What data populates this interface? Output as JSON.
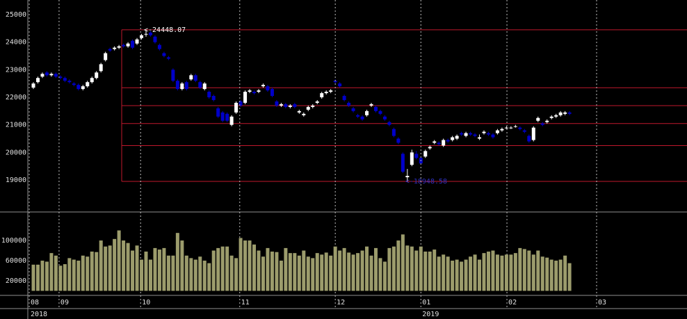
{
  "chart_data": [
    {
      "type": "candlestick",
      "ylim": [
        17840,
        25530
      ],
      "yticks": [
        19000,
        20000,
        21000,
        22000,
        23000,
        24000,
        25000
      ],
      "up_color": "#ffffff",
      "down_color": "#0000c8",
      "fib_color": "#c0182c",
      "fib_x_start": 19.6,
      "fib_levels": [
        24448.07,
        22347.3,
        21698.3,
        21049.4,
        20246.9,
        18948.58
      ],
      "annotations": [
        {
          "text": "<-24448.07",
          "value": 24448.07,
          "x": 25,
          "color": "#ffffff"
        },
        {
          "text": "<-18948.58",
          "value": 18948.58,
          "x": 83,
          "color": "#3030c0"
        }
      ],
      "ohlc": [
        [
          22350,
          22550,
          22300,
          22500
        ],
        [
          22550,
          22750,
          22500,
          22700
        ],
        [
          22750,
          22900,
          22700,
          22850
        ],
        [
          22900,
          22950,
          22750,
          22800
        ],
        [
          22800,
          22900,
          22750,
          22850
        ],
        [
          22850,
          22900,
          22700,
          22750
        ],
        [
          22750,
          22800,
          22650,
          22700
        ],
        [
          22700,
          22750,
          22550,
          22600
        ],
        [
          22600,
          22650,
          22500,
          22550
        ],
        [
          22500,
          22550,
          22400,
          22450
        ],
        [
          22450,
          22500,
          22250,
          22300
        ],
        [
          22300,
          22450,
          22250,
          22400
        ],
        [
          22400,
          22600,
          22350,
          22550
        ],
        [
          22550,
          22750,
          22500,
          22700
        ],
        [
          22700,
          22950,
          22650,
          22900
        ],
        [
          22950,
          23250,
          22900,
          23200
        ],
        [
          23350,
          23650,
          23300,
          23600
        ],
        [
          23750,
          23800,
          23650,
          23700
        ],
        [
          23750,
          23850,
          23700,
          23800
        ],
        [
          23800,
          23900,
          23750,
          23850
        ],
        [
          23900,
          23950,
          23800,
          23850
        ],
        [
          23850,
          24000,
          23800,
          23950
        ],
        [
          24050,
          24100,
          23750,
          23800
        ],
        [
          23950,
          24150,
          23900,
          24100
        ],
        [
          24150,
          24300,
          24100,
          24250
        ],
        [
          24300,
          24448.07,
          24200,
          24300
        ],
        [
          24350,
          24400,
          24200,
          24250
        ],
        [
          24200,
          24250,
          23950,
          24000
        ],
        [
          23900,
          23950,
          23700,
          23750
        ],
        [
          23600,
          23650,
          23450,
          23500
        ],
        [
          23450,
          23500,
          23350,
          23400
        ],
        [
          23000,
          23050,
          22550,
          22600
        ],
        [
          22600,
          22650,
          22250,
          22300
        ],
        [
          22300,
          22550,
          22250,
          22500
        ],
        [
          22550,
          22600,
          22250,
          22300
        ],
        [
          22650,
          22850,
          22600,
          22800
        ],
        [
          22800,
          22850,
          22550,
          22600
        ],
        [
          22550,
          22600,
          22300,
          22350
        ],
        [
          22300,
          22550,
          22250,
          22500
        ],
        [
          22200,
          22250,
          21950,
          22000
        ],
        [
          22050,
          22100,
          21850,
          21900
        ],
        [
          21600,
          21650,
          21250,
          21300
        ],
        [
          21450,
          21500,
          21100,
          21150
        ],
        [
          21400,
          21450,
          21100,
          21150
        ],
        [
          21000,
          21350,
          20950,
          21300
        ],
        [
          21450,
          21850,
          21400,
          21800
        ],
        [
          21850,
          21900,
          21650,
          21700
        ],
        [
          21800,
          22250,
          21750,
          22200
        ],
        [
          22200,
          22300,
          22150,
          22250
        ],
        [
          22200,
          22250,
          22100,
          22150
        ],
        [
          22200,
          22300,
          22150,
          22250
        ],
        [
          22400,
          22500,
          22350,
          22450
        ],
        [
          22400,
          22450,
          22200,
          22250
        ],
        [
          22300,
          22350,
          22000,
          22050
        ],
        [
          21850,
          21900,
          21650,
          21700
        ],
        [
          21700,
          21800,
          21650,
          21750
        ],
        [
          21750,
          21800,
          21600,
          21650
        ],
        [
          21650,
          21750,
          21600,
          21700
        ],
        [
          21750,
          21800,
          21600,
          21650
        ],
        [
          21450,
          21550,
          21400,
          21500
        ],
        [
          21350,
          21450,
          21300,
          21400
        ],
        [
          21550,
          21700,
          21500,
          21650
        ],
        [
          21650,
          21750,
          21600,
          21700
        ],
        [
          21800,
          21900,
          21750,
          21850
        ],
        [
          22000,
          22200,
          21950,
          22150
        ],
        [
          22150,
          22250,
          22100,
          22200
        ],
        [
          22200,
          22300,
          22150,
          22250
        ],
        [
          22600,
          22650,
          22500,
          22550
        ],
        [
          22500,
          22550,
          22350,
          22400
        ],
        [
          22050,
          22100,
          21850,
          21900
        ],
        [
          21800,
          21850,
          21650,
          21700
        ],
        [
          21600,
          21650,
          21450,
          21500
        ],
        [
          21350,
          21400,
          21250,
          21300
        ],
        [
          21300,
          21350,
          21150,
          21200
        ],
        [
          21350,
          21550,
          21300,
          21500
        ],
        [
          21700,
          21800,
          21650,
          21750
        ],
        [
          21650,
          21700,
          21450,
          21500
        ],
        [
          21500,
          21550,
          21350,
          21400
        ],
        [
          21300,
          21350,
          21150,
          21200
        ],
        [
          21100,
          21150,
          20950,
          21000
        ],
        [
          20850,
          20900,
          20550,
          20600
        ],
        [
          20500,
          20550,
          20300,
          20350
        ],
        [
          19950,
          20000,
          19250,
          19300
        ],
        [
          19100,
          19400,
          18948.58,
          19150
        ],
        [
          19550,
          20100,
          19500,
          20000
        ],
        [
          19950,
          20050,
          19750,
          19800
        ],
        [
          19800,
          19850,
          19550,
          19600
        ],
        [
          19850,
          20100,
          19800,
          20050
        ],
        [
          20150,
          20250,
          20100,
          20200
        ],
        [
          20350,
          20450,
          20300,
          20400
        ],
        [
          20350,
          20400,
          20250,
          20300
        ],
        [
          20250,
          20500,
          20200,
          20450
        ],
        [
          20450,
          20500,
          20350,
          20400
        ],
        [
          20450,
          20600,
          20400,
          20550
        ],
        [
          20500,
          20650,
          20450,
          20600
        ],
        [
          20700,
          20750,
          20600,
          20650
        ],
        [
          20600,
          20750,
          20550,
          20700
        ],
        [
          20700,
          20750,
          20600,
          20650
        ],
        [
          20650,
          20700,
          20550,
          20600
        ],
        [
          20500,
          20650,
          20450,
          20550
        ],
        [
          20700,
          20800,
          20650,
          20750
        ],
        [
          20700,
          20750,
          20600,
          20650
        ],
        [
          20650,
          20700,
          20500,
          20550
        ],
        [
          20700,
          20850,
          20650,
          20800
        ],
        [
          20800,
          20900,
          20750,
          20850
        ],
        [
          20900,
          20950,
          20850,
          20900
        ],
        [
          20900,
          20950,
          20850,
          20900
        ],
        [
          20950,
          21000,
          20900,
          20950
        ],
        [
          20900,
          20950,
          20800,
          20850
        ],
        [
          20800,
          20850,
          20700,
          20750
        ],
        [
          20600,
          20650,
          20350,
          20400
        ],
        [
          20450,
          20950,
          20400,
          20900
        ],
        [
          21150,
          21300,
          21100,
          21250
        ],
        [
          21050,
          21100,
          20950,
          21000
        ],
        [
          21100,
          21200,
          21050,
          21150
        ],
        [
          21250,
          21350,
          21200,
          21300
        ],
        [
          21300,
          21400,
          21250,
          21350
        ],
        [
          21350,
          21500,
          21300,
          21450
        ],
        [
          21400,
          21500,
          21350,
          21450
        ],
        [
          21450,
          21500,
          21350,
          21400
        ]
      ]
    },
    {
      "type": "bar",
      "color": "#9c9c6c",
      "ylim": [
        0,
        156600
      ],
      "yticks": [
        20000,
        60000,
        100000
      ],
      "xticks": [
        {
          "value": -0.93,
          "label": "08"
        },
        {
          "value": 5.7,
          "label": "09"
        },
        {
          "value": 23.8,
          "label": "10"
        },
        {
          "value": 45.8,
          "label": "11"
        },
        {
          "value": 67,
          "label": "12"
        },
        {
          "value": 86,
          "label": "01"
        },
        {
          "value": 105.1,
          "label": "02"
        },
        {
          "value": 125,
          "label": "03"
        }
      ],
      "year_ticks": [
        {
          "value": -0.93,
          "label": "2018"
        },
        {
          "value": 86,
          "label": "2019"
        }
      ],
      "values": [
        52000,
        52000,
        60000,
        58000,
        75000,
        70000,
        50000,
        53000,
        65000,
        62000,
        60000,
        70000,
        68000,
        78000,
        77000,
        100000,
        88000,
        90000,
        103000,
        120000,
        100000,
        95000,
        80000,
        90000,
        62000,
        78000,
        62000,
        85000,
        82000,
        85000,
        70000,
        70000,
        115000,
        100000,
        70000,
        65000,
        62000,
        68000,
        60000,
        55000,
        80000,
        85000,
        88000,
        88000,
        70000,
        65000,
        105000,
        100000,
        100000,
        92000,
        80000,
        68000,
        85000,
        78000,
        77000,
        60000,
        85000,
        75000,
        75000,
        70000,
        80000,
        68000,
        65000,
        75000,
        72000,
        76000,
        70000,
        88000,
        80000,
        85000,
        76000,
        72000,
        75000,
        80000,
        88000,
        70000,
        85000,
        65000,
        58000,
        85000,
        88000,
        100000,
        112000,
        90000,
        88000,
        80000,
        88000,
        78000,
        78000,
        82000,
        68000,
        72000,
        68000,
        60000,
        62000,
        58000,
        62000,
        68000,
        72000,
        62000,
        75000,
        78000,
        80000,
        72000,
        70000,
        72000,
        72000,
        75000,
        85000,
        83000,
        80000,
        72000,
        80000,
        68000,
        66000,
        62000,
        60000,
        62000,
        70000,
        55000
      ]
    }
  ]
}
